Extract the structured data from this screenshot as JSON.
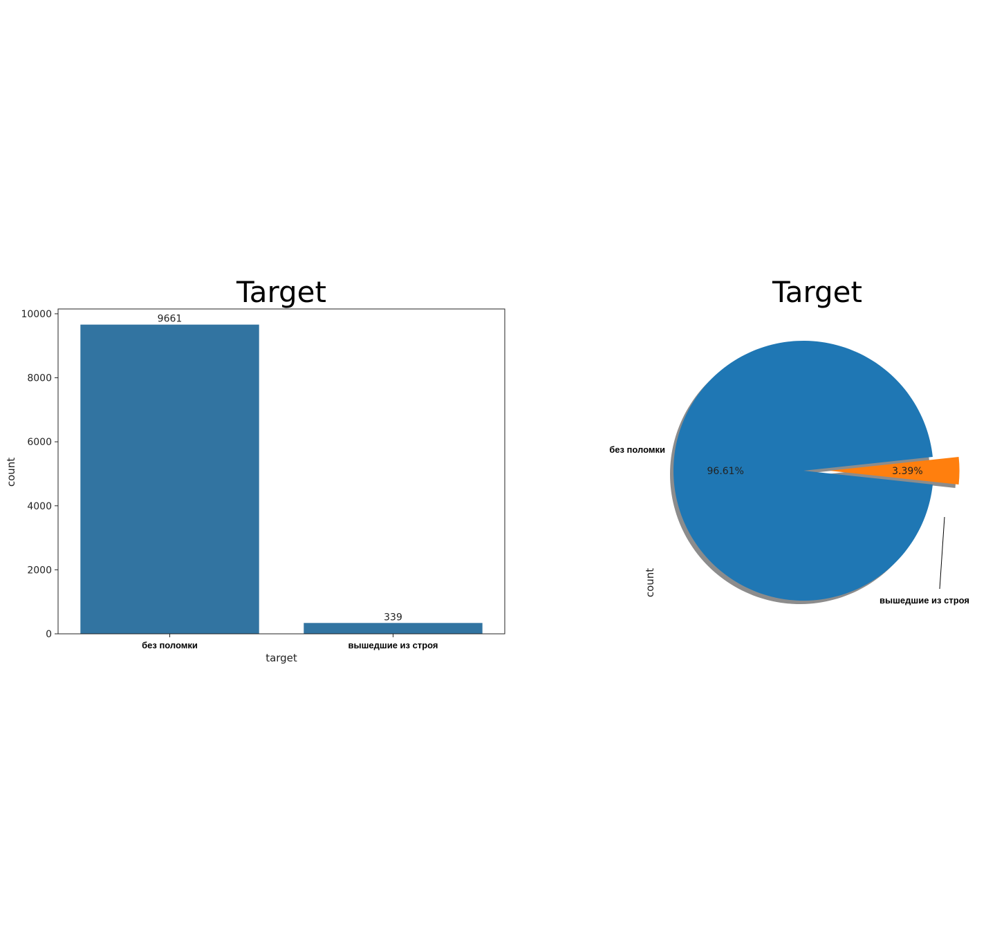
{
  "chart_data": [
    {
      "type": "bar",
      "title": "Target",
      "xlabel": "target",
      "ylabel": "count",
      "categories": [
        "без поломки",
        "вышедшие из строя"
      ],
      "values": [
        9661,
        339
      ],
      "data_labels": [
        "9661",
        "339"
      ],
      "ylim": [
        0,
        10150
      ],
      "yticks": [
        0,
        2000,
        4000,
        6000,
        8000,
        10000
      ],
      "ytick_labels": [
        "0",
        "2000",
        "4000",
        "6000",
        "8000",
        "10000"
      ],
      "color": "#3274a1",
      "grid": false
    },
    {
      "type": "pie",
      "title": "Target",
      "ylabel": "count",
      "labels": [
        "без поломки",
        "вышедшие из строя"
      ],
      "values": [
        96.61,
        3.39
      ],
      "pct_labels": [
        "96.61%",
        "3.39%"
      ],
      "colors": [
        "#1f77b4",
        "#ff7f0e"
      ],
      "explode": [
        0,
        0.2
      ],
      "shadow": true
    }
  ]
}
